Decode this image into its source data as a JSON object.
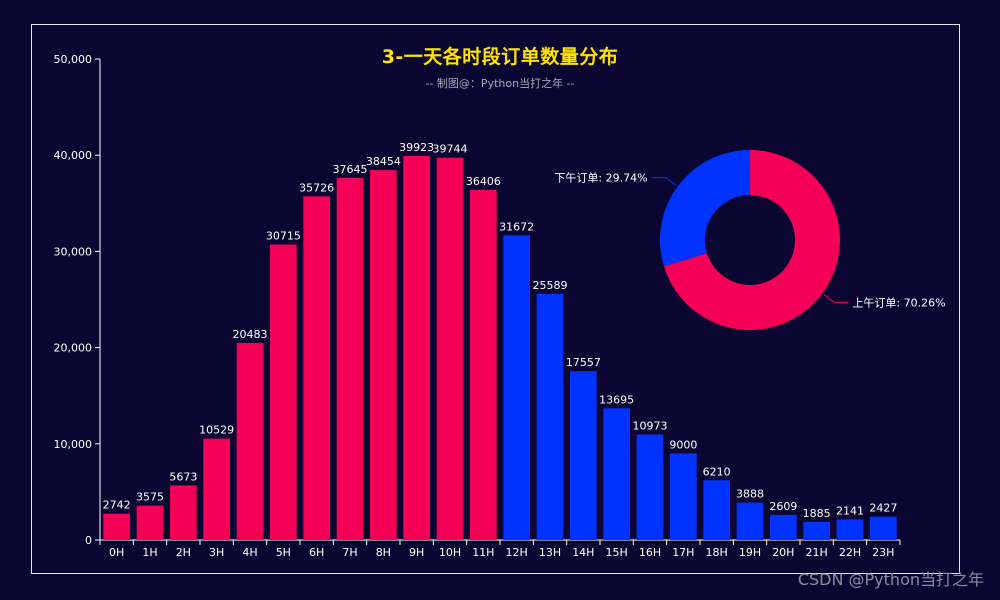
{
  "chart_data": [
    {
      "type": "bar",
      "title": "3-一天各时段订单数量分布",
      "subtitle": "-- 制图@：Python当打之年 --",
      "categories": [
        "0H",
        "1H",
        "2H",
        "3H",
        "4H",
        "5H",
        "6H",
        "7H",
        "8H",
        "9H",
        "10H",
        "11H",
        "12H",
        "13H",
        "14H",
        "15H",
        "16H",
        "17H",
        "18H",
        "19H",
        "20H",
        "21H",
        "22H",
        "23H"
      ],
      "values": [
        2742,
        3575,
        5673,
        10529,
        20483,
        30715,
        35726,
        37645,
        38454,
        39923,
        39744,
        36406,
        31672,
        25589,
        17557,
        13695,
        10973,
        9000,
        6210,
        3888,
        2609,
        1885,
        2141,
        2427
      ],
      "ylim": [
        0,
        50000
      ],
      "yticks": [
        0,
        10000,
        20000,
        30000,
        40000,
        50000
      ],
      "ytick_labels": [
        "0",
        "10,000",
        "20,000",
        "30,000",
        "40,000",
        "50,000"
      ],
      "colors": {
        "morning": "#f50057",
        "afternoon": "#0033ff"
      },
      "grid": false
    },
    {
      "type": "pie",
      "variant": "donut",
      "slices": [
        {
          "name": "上午订单",
          "value": 70.26,
          "label": "上午订单: 70.26%",
          "color": "#f50057"
        },
        {
          "name": "下午订单",
          "value": 29.74,
          "label": "下午订单: 29.74%",
          "color": "#0033ff"
        }
      ]
    }
  ],
  "watermark": "CSDN @Python当打之年"
}
